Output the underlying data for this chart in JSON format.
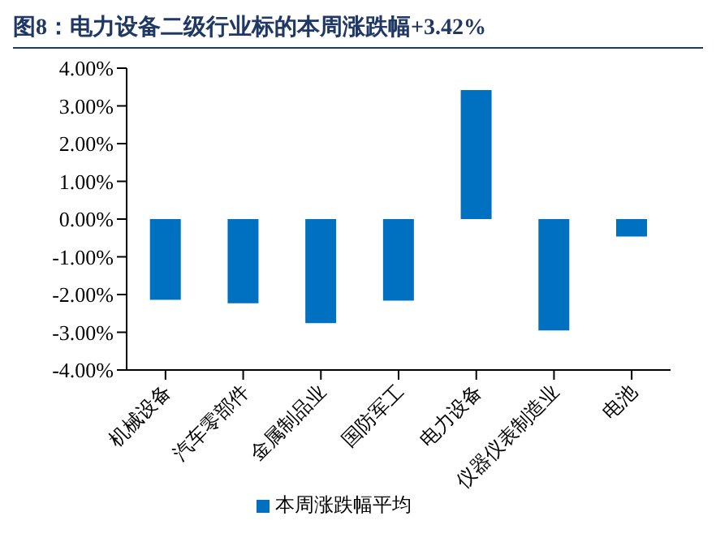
{
  "chart_data": {
    "type": "bar",
    "title": "图8：电力设备二级行业标的本周涨跌幅+3.42%",
    "categories": [
      "机械设备",
      "汽车零部件",
      "金属制品业",
      "国防军工",
      "电力设备",
      "仪器仪表制造业",
      "电池"
    ],
    "series": [
      {
        "name": "本周涨跌幅平均",
        "color": "#0070c0",
        "values": [
          -2.14,
          -2.23,
          -2.76,
          -2.16,
          3.42,
          -2.95,
          -0.46
        ]
      }
    ],
    "ylim": [
      -4,
      4
    ],
    "yticks": [
      {
        "value": -4,
        "label": "-4.00%"
      },
      {
        "value": -3,
        "label": "-3.00%"
      },
      {
        "value": -2,
        "label": "-2.00%"
      },
      {
        "value": -1,
        "label": "-1.00%"
      },
      {
        "value": 0,
        "label": "0.00%"
      },
      {
        "value": 1,
        "label": "1.00%"
      },
      {
        "value": 2,
        "label": "2.00%"
      },
      {
        "value": 3,
        "label": "3.00%"
      },
      {
        "value": 4,
        "label": "4.00%"
      }
    ],
    "grid": false,
    "legend": "bottom"
  }
}
